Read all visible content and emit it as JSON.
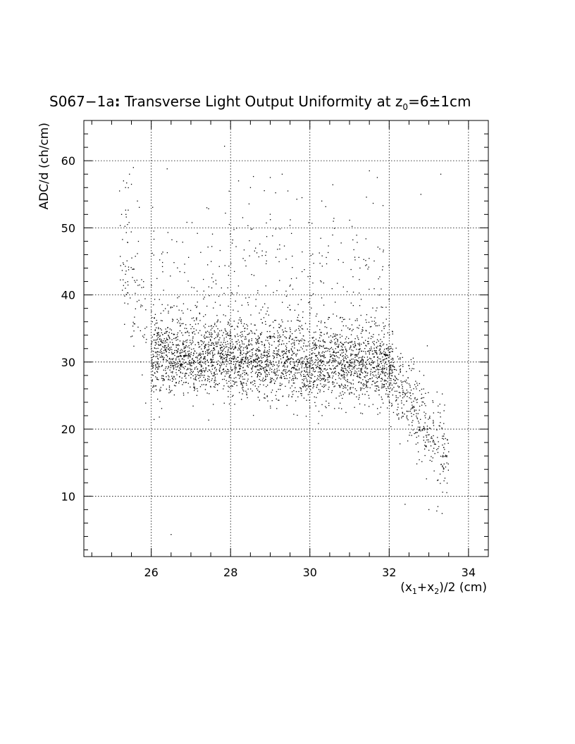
{
  "chart_data": {
    "type": "scatter",
    "title": {
      "prefix": "S067−1a",
      "colon": ":",
      "main": " Transverse Light Output Uniformity at z",
      "sub": "0",
      "suffix": "=6±1cm"
    },
    "ylabel": "ADC/d (ch/cm)",
    "xlabel": {
      "a": "(x",
      "sub1": "1",
      "b": "+x",
      "sub2": "2",
      "c": ")/2 (cm)"
    },
    "xlim": [
      24.3,
      34.5
    ],
    "ylim": [
      1,
      66
    ],
    "xticks": [
      26,
      28,
      30,
      32,
      34
    ],
    "yticks": [
      10,
      20,
      30,
      40,
      50,
      60
    ],
    "grid": true,
    "marker_color": "#000000",
    "clusters": [
      {
        "x": [
          26.0,
          32.1
        ],
        "y": [
          30.5,
          29.0
        ],
        "sx": 0,
        "sy": 2.6,
        "n": 2600,
        "uniform_x": true
      },
      {
        "x": [
          26.0,
          32.0
        ],
        "y": [
          34.0,
          33.0
        ],
        "sx": 0,
        "sy": 3.0,
        "n": 500,
        "uniform_x": true
      },
      {
        "x": [
          32.0,
          33.5
        ],
        "y": [
          28.0,
          16.0
        ],
        "sx": 0,
        "sy": 3.2,
        "n": 380,
        "uniform_x": true
      },
      {
        "x": [
          25.2,
          25.9
        ],
        "y": [
          46.0,
          36.0
        ],
        "sx": 0,
        "sy": 5.5,
        "n": 90,
        "uniform_x": true
      },
      {
        "x": [
          26.0,
          32.0
        ],
        "y": [
          44.0,
          44.0
        ],
        "sx": 0,
        "sy": 5.5,
        "n": 260,
        "uniform_x": true
      }
    ],
    "points": [
      [
        25.2,
        55.5
      ],
      [
        25.3,
        57.0
      ],
      [
        25.35,
        56.0
      ],
      [
        25.45,
        58.0
      ],
      [
        25.5,
        56.5
      ],
      [
        25.55,
        59.0
      ],
      [
        25.25,
        52.0
      ],
      [
        25.4,
        50.5
      ],
      [
        25.65,
        54.0
      ],
      [
        26.4,
        58.8
      ],
      [
        28.2,
        57.0
      ],
      [
        28.5,
        56.0
      ],
      [
        29.0,
        57.5
      ],
      [
        29.3,
        58.0
      ],
      [
        29.8,
        54.5
      ],
      [
        30.3,
        54.0
      ],
      [
        31.5,
        58.5
      ],
      [
        31.7,
        57.5
      ],
      [
        32.8,
        55.0
      ],
      [
        33.3,
        58.0
      ],
      [
        27.4,
        53.0
      ],
      [
        26.5,
        4.3
      ],
      [
        32.4,
        8.8
      ],
      [
        33.0,
        8.0
      ],
      [
        33.2,
        7.8
      ]
    ]
  }
}
